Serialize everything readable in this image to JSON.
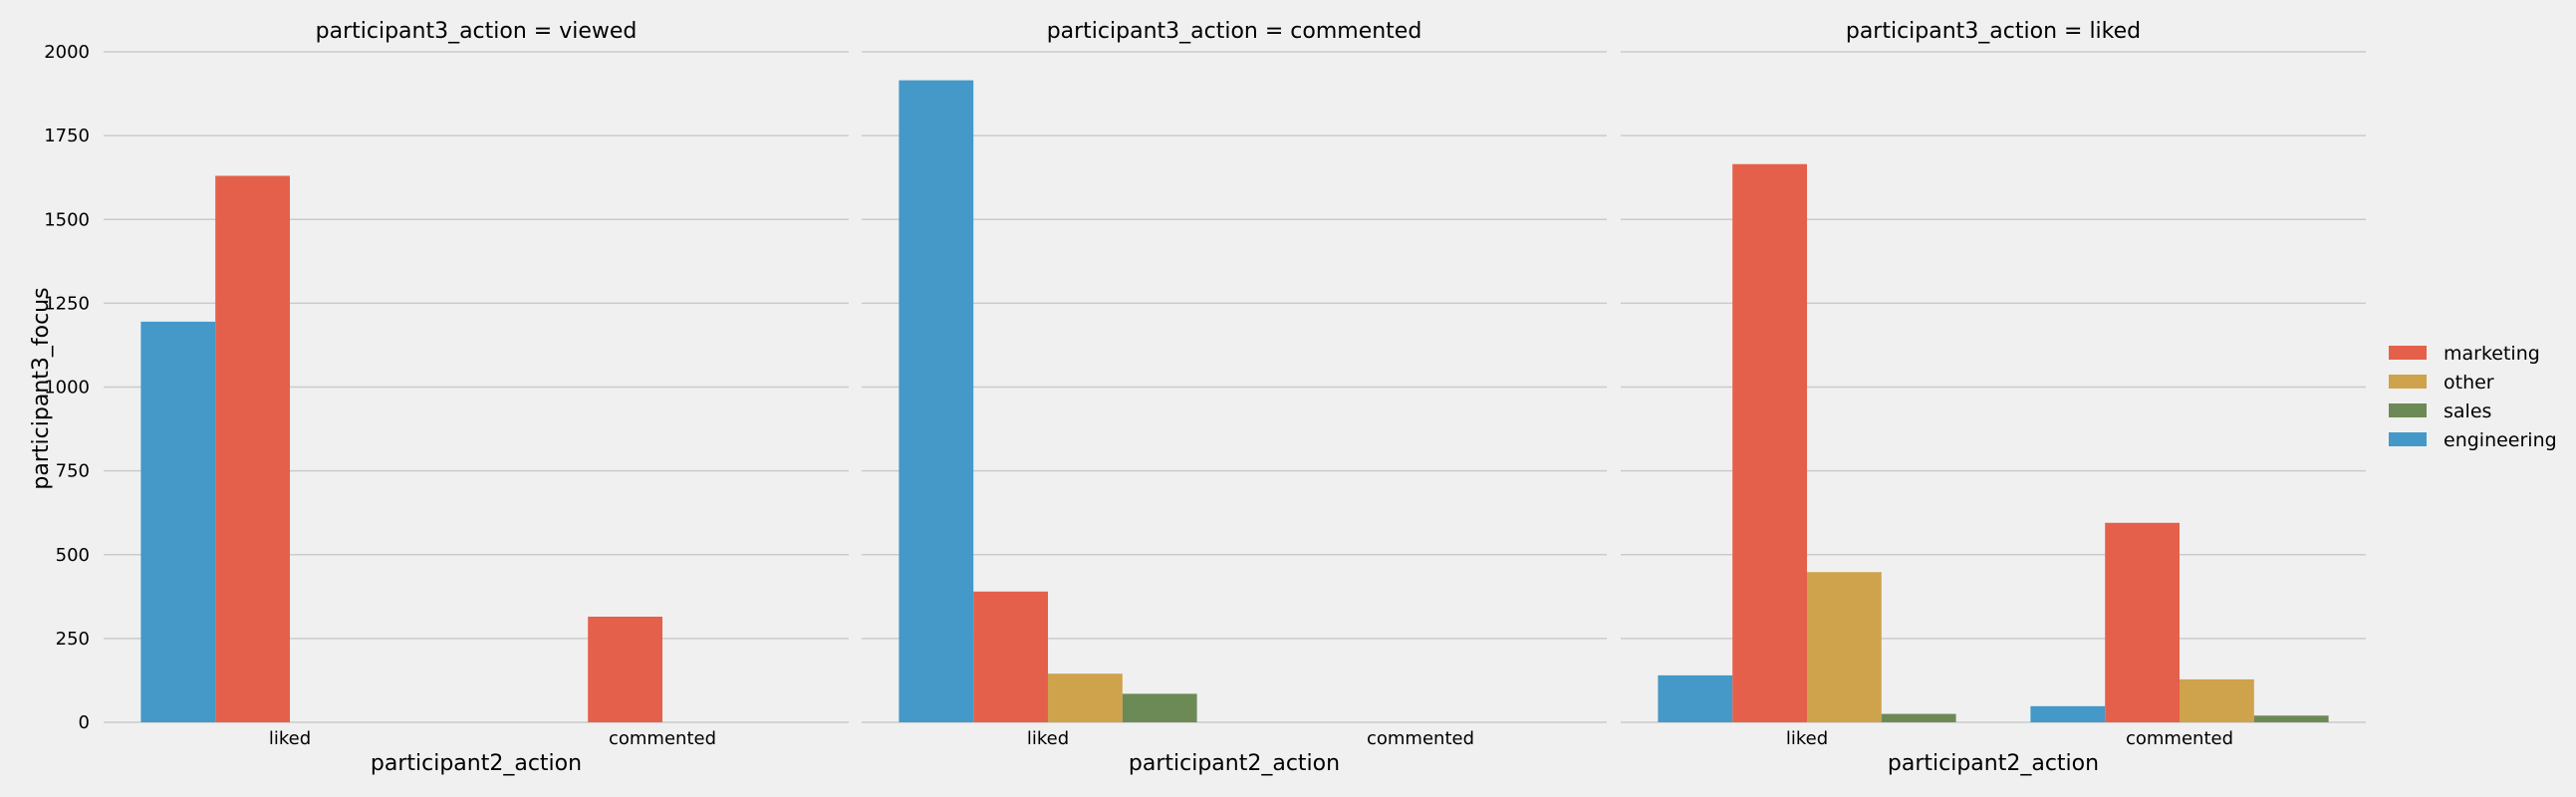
{
  "chart_data": {
    "type": "bar",
    "ylabel": "participant3_focus",
    "ylim": [
      0,
      2000
    ],
    "yticks": [
      0,
      250,
      500,
      750,
      1000,
      1250,
      1500,
      1750,
      2000
    ],
    "grid": true,
    "legend_position": "right",
    "hue_order": [
      "engineering",
      "marketing",
      "other",
      "sales"
    ],
    "legend": [
      {
        "name": "marketing",
        "color": "#e5604a"
      },
      {
        "name": "other",
        "color": "#cfa24c"
      },
      {
        "name": "sales",
        "color": "#6c8a55"
      },
      {
        "name": "engineering",
        "color": "#4499c8"
      }
    ],
    "panels": [
      {
        "title": "participant3_action = viewed",
        "xlabel": "participant2_action",
        "categories": [
          "liked",
          "commented"
        ],
        "series": [
          {
            "name": "engineering",
            "values": [
              1195,
              0
            ]
          },
          {
            "name": "marketing",
            "values": [
              1630,
              315
            ]
          },
          {
            "name": "other",
            "values": [
              0,
              0
            ]
          },
          {
            "name": "sales",
            "values": [
              0,
              0
            ]
          }
        ]
      },
      {
        "title": "participant3_action = commented",
        "xlabel": "participant2_action",
        "categories": [
          "liked",
          "commented"
        ],
        "series": [
          {
            "name": "engineering",
            "values": [
              1915,
              0
            ]
          },
          {
            "name": "marketing",
            "values": [
              390,
              0
            ]
          },
          {
            "name": "other",
            "values": [
              145,
              0
            ]
          },
          {
            "name": "sales",
            "values": [
              85,
              0
            ]
          }
        ]
      },
      {
        "title": "participant3_action = liked",
        "xlabel": "participant2_action",
        "categories": [
          "liked",
          "commented"
        ],
        "series": [
          {
            "name": "engineering",
            "values": [
              140,
              48
            ]
          },
          {
            "name": "marketing",
            "values": [
              1665,
              595
            ]
          },
          {
            "name": "other",
            "values": [
              448,
              128
            ]
          },
          {
            "name": "sales",
            "values": [
              25,
              20
            ]
          }
        ]
      }
    ]
  }
}
